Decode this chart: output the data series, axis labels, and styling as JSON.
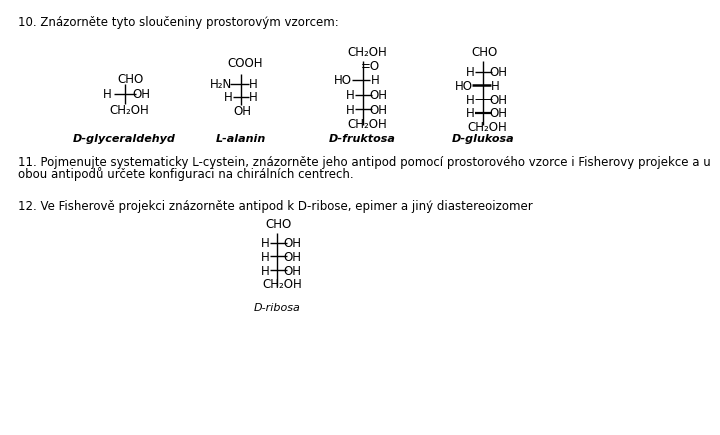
{
  "title10": "10. Znázorněte tyto sloučeniny prostorovým vzorcem:",
  "title11_1": "11. Pojmenujte systematicky L-cystein, znázorněte jeho antipod pomocí prostorového vzorce i Fisherovy projekce a u",
  "title11_2": "obou antipodů určete konfiguraci na chirálních centrech.",
  "title12": "12. Ve Fisherově projekci znázorněte antipod k D-ribose, epimer a jiný diastereoizomer",
  "label1": "D-glyceraldehyd",
  "label2": "L-alanin",
  "label3": "D-fruktosa",
  "label4": "D-glukosa",
  "label5": "D-ribosa",
  "bg_color": "#ffffff",
  "text_color": "#000000",
  "fs": 8.5,
  "lfs": 8.0
}
